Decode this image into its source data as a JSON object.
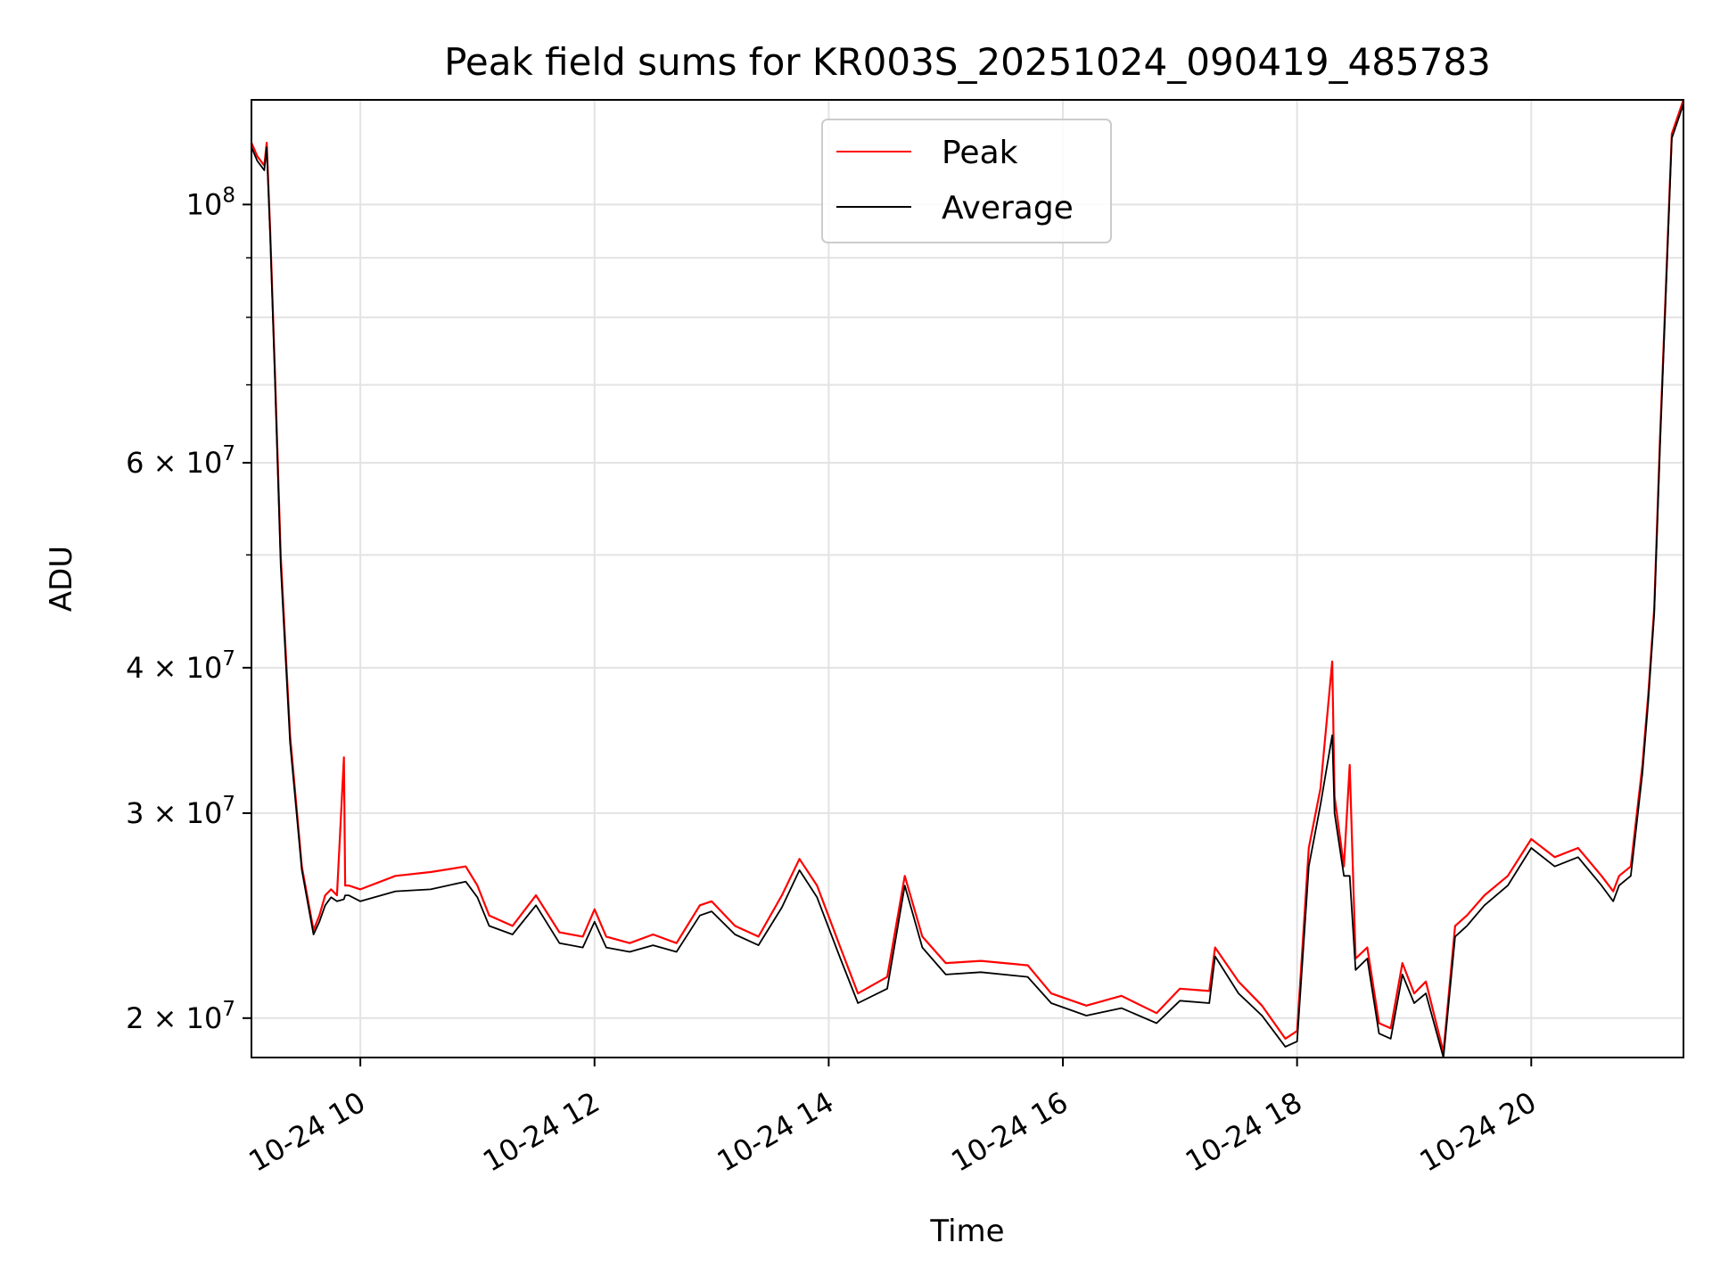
{
  "chart_data": {
    "type": "line",
    "title": "Peak field sums for KR003S_20251024_090419_485783",
    "xlabel": "Time",
    "ylabel": "ADU",
    "yscale": "log",
    "xlim": [
      9.07,
      21.3
    ],
    "ylim": [
      18500000,
      123000000
    ],
    "x_unit": "hours on 2025-10-24",
    "grid": true,
    "legend_position": "top-center",
    "x_ticks": [
      {
        "value": 10,
        "label": "10-24 10"
      },
      {
        "value": 12,
        "label": "10-24 12"
      },
      {
        "value": 14,
        "label": "10-24 14"
      },
      {
        "value": 16,
        "label": "10-24 16"
      },
      {
        "value": 18,
        "label": "10-24 18"
      },
      {
        "value": 20,
        "label": "10-24 20"
      }
    ],
    "y_ticks": [
      {
        "value": 20000000,
        "mantissa": "2",
        "exponent": "7"
      },
      {
        "value": 30000000,
        "mantissa": "3",
        "exponent": "7"
      },
      {
        "value": 40000000,
        "mantissa": "4",
        "exponent": "7"
      },
      {
        "value": 60000000,
        "mantissa": "6",
        "exponent": "7"
      },
      {
        "value": 100000000,
        "mantissa": "",
        "exponent": "8"
      }
    ],
    "y_minor_ticks": [
      50000000,
      70000000,
      80000000,
      90000000
    ],
    "series": [
      {
        "name": "Peak",
        "color": "#ff0000",
        "x": [
          9.07,
          9.12,
          9.15,
          9.18,
          9.2,
          9.23,
          9.27,
          9.32,
          9.4,
          9.5,
          9.6,
          9.65,
          9.7,
          9.75,
          9.8,
          9.86,
          9.87,
          9.9,
          10.0,
          10.3,
          10.6,
          10.9,
          11.0,
          11.1,
          11.3,
          11.5,
          11.7,
          11.9,
          12.0,
          12.1,
          12.3,
          12.5,
          12.7,
          12.9,
          13.0,
          13.2,
          13.4,
          13.6,
          13.75,
          13.9,
          14.1,
          14.25,
          14.5,
          14.65,
          14.8,
          15.0,
          15.3,
          15.7,
          15.9,
          16.2,
          16.5,
          16.8,
          17.0,
          17.25,
          17.3,
          17.5,
          17.7,
          17.9,
          18.0,
          18.1,
          18.2,
          18.3,
          18.32,
          18.4,
          18.45,
          18.5,
          18.6,
          18.7,
          18.8,
          18.9,
          19.0,
          19.1,
          19.25,
          19.35,
          19.45,
          19.6,
          19.8,
          20.0,
          20.2,
          20.4,
          20.6,
          20.7,
          20.75,
          20.85,
          20.95,
          21.0,
          21.05,
          21.1,
          21.15,
          21.2,
          21.3
        ],
        "y": [
          113000000,
          110000000,
          109000000,
          108000000,
          113000000,
          95000000,
          72000000,
          50000000,
          35000000,
          27000000,
          23800000,
          24500000,
          25500000,
          25800000,
          25500000,
          33500000,
          26000000,
          26000000,
          25800000,
          26500000,
          26700000,
          27000000,
          26000000,
          24500000,
          24000000,
          25500000,
          23700000,
          23500000,
          24800000,
          23500000,
          23200000,
          23600000,
          23200000,
          25000000,
          25200000,
          24000000,
          23500000,
          25500000,
          27400000,
          26000000,
          23000000,
          21000000,
          21700000,
          26500000,
          23500000,
          22300000,
          22400000,
          22200000,
          21000000,
          20500000,
          20900000,
          20200000,
          21200000,
          21100000,
          23000000,
          21500000,
          20500000,
          19200000,
          19500000,
          28000000,
          31500000,
          40500000,
          31000000,
          27000000,
          33000000,
          22500000,
          23000000,
          19800000,
          19600000,
          22300000,
          21000000,
          21500000,
          18700000,
          24000000,
          24500000,
          25500000,
          26500000,
          28500000,
          27500000,
          28000000,
          26500000,
          25700000,
          26500000,
          27000000,
          33000000,
          38000000,
          45000000,
          63000000,
          85000000,
          115000000,
          123000000
        ]
      },
      {
        "name": "Average",
        "color": "#000000",
        "x": [
          9.07,
          9.12,
          9.15,
          9.18,
          9.2,
          9.23,
          9.27,
          9.32,
          9.4,
          9.5,
          9.6,
          9.65,
          9.7,
          9.75,
          9.8,
          9.86,
          9.87,
          9.9,
          10.0,
          10.3,
          10.6,
          10.9,
          11.0,
          11.1,
          11.3,
          11.5,
          11.7,
          11.9,
          12.0,
          12.1,
          12.3,
          12.5,
          12.7,
          12.9,
          13.0,
          13.2,
          13.4,
          13.6,
          13.75,
          13.9,
          14.1,
          14.25,
          14.5,
          14.65,
          14.8,
          15.0,
          15.3,
          15.7,
          15.9,
          16.2,
          16.5,
          16.8,
          17.0,
          17.25,
          17.3,
          17.5,
          17.7,
          17.9,
          18.0,
          18.1,
          18.2,
          18.3,
          18.32,
          18.4,
          18.45,
          18.5,
          18.6,
          18.7,
          18.8,
          18.9,
          19.0,
          19.1,
          19.25,
          19.35,
          19.45,
          19.6,
          19.8,
          20.0,
          20.2,
          20.4,
          20.6,
          20.7,
          20.75,
          20.85,
          20.95,
          21.0,
          21.05,
          21.1,
          21.15,
          21.2,
          21.3
        ],
        "y": [
          112000000,
          109000000,
          108000000,
          107000000,
          112000000,
          94000000,
          71000000,
          49000000,
          34500000,
          26800000,
          23600000,
          24200000,
          25000000,
          25400000,
          25200000,
          25300000,
          25500000,
          25500000,
          25200000,
          25700000,
          25800000,
          26200000,
          25400000,
          24000000,
          23600000,
          25000000,
          23200000,
          23000000,
          24200000,
          23000000,
          22800000,
          23100000,
          22800000,
          24500000,
          24700000,
          23600000,
          23100000,
          24900000,
          26800000,
          25400000,
          22500000,
          20600000,
          21200000,
          26000000,
          23000000,
          21800000,
          21900000,
          21700000,
          20600000,
          20100000,
          20400000,
          19800000,
          20700000,
          20600000,
          22600000,
          21000000,
          20100000,
          18900000,
          19100000,
          27000000,
          30500000,
          35000000,
          30000000,
          26500000,
          26500000,
          22000000,
          22500000,
          19400000,
          19200000,
          21800000,
          20600000,
          21000000,
          18500000,
          23500000,
          24000000,
          25000000,
          26000000,
          28000000,
          27000000,
          27500000,
          26000000,
          25200000,
          26000000,
          26500000,
          32500000,
          37500000,
          44500000,
          62000000,
          84000000,
          114000000,
          122000000
        ]
      }
    ]
  }
}
